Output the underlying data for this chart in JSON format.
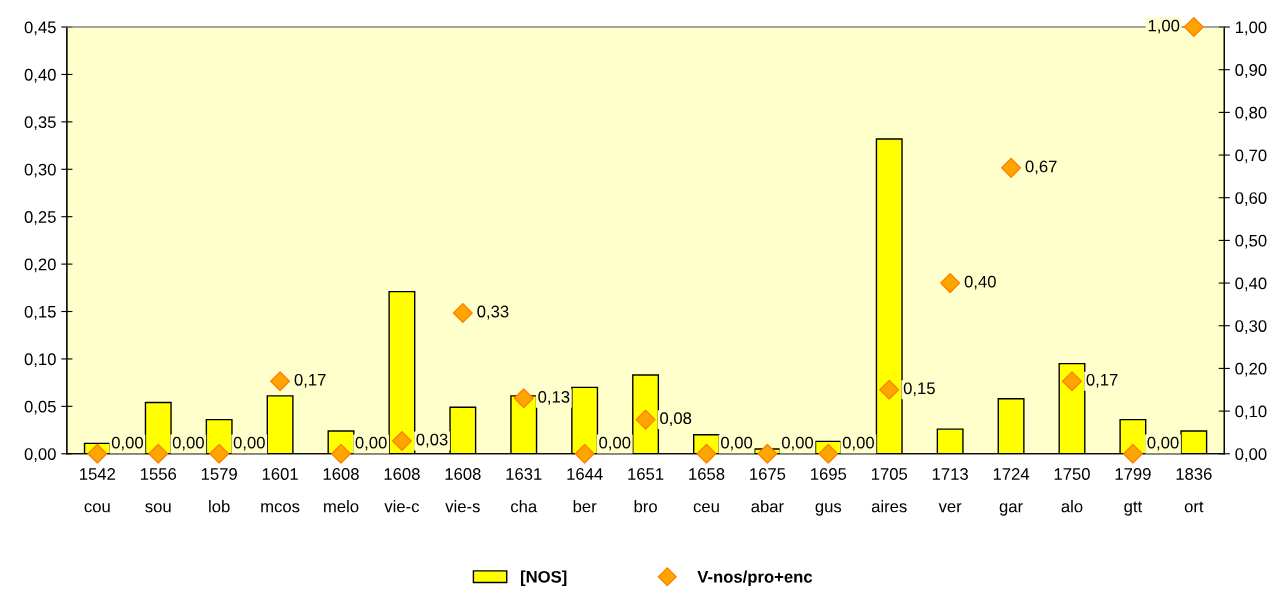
{
  "chart_data": {
    "type": "bar",
    "categories": [
      "1542\ncou",
      "1556\nsou",
      "1579\nlob",
      "1601\nmcos",
      "1608\nmelo",
      "1608\nvie-c",
      "1608\nvie-s",
      "1631\ncha",
      "1644\nber",
      "1651\nbro",
      "1658\nceu",
      "1675\nabar",
      "1695\ngus",
      "1705\naires",
      "1713\nver",
      "1724\ngar",
      "1750\nalo",
      "1799\ngtt",
      "1836\nort"
    ],
    "series": [
      {
        "name": "[NOS]",
        "color": "#ffff00",
        "values": [
          0.011,
          0.054,
          0.036,
          0.061,
          0.024,
          0.171,
          0.049,
          0.061,
          0.07,
          0.083,
          0.02,
          0.005,
          0.013,
          0.332,
          0.026,
          0.058,
          0.095,
          0.036,
          0.024
        ]
      },
      {
        "name": "V-nos/pro+enc",
        "type": "scatter",
        "axis": "y2",
        "color": "#ffa500",
        "marker": "diamond",
        "values": [
          0,
          0,
          0,
          0.17,
          0,
          0.03,
          0.33,
          0.13,
          0,
          0.08,
          0,
          0,
          0,
          0.15,
          0.4,
          0.67,
          0.17,
          0,
          1.0
        ],
        "value_labels": [
          "0,00",
          "0,00",
          "0,00",
          "0,17",
          "0,00",
          "0,03",
          "0,33",
          "0,13",
          "0,00",
          "0,08",
          "0,00",
          "0,00",
          "0,00",
          "0,15",
          "0,40",
          "0,67",
          "0,17",
          "0,00",
          "1,00"
        ]
      }
    ],
    "ylim": [
      0,
      0.45
    ],
    "yticks": [
      {
        "value": 0,
        "label": "0,00"
      },
      {
        "value": 0.05,
        "label": "0,05"
      },
      {
        "value": 0.1,
        "label": "0,10"
      },
      {
        "value": 0.15,
        "label": "0,15"
      },
      {
        "value": 0.2,
        "label": "0,20"
      },
      {
        "value": 0.25,
        "label": "0,25"
      },
      {
        "value": 0.3,
        "label": "0,30"
      },
      {
        "value": 0.35,
        "label": "0,35"
      },
      {
        "value": 0.4,
        "label": "0,40"
      },
      {
        "value": 0.45,
        "label": "0,45"
      }
    ],
    "y2lim": [
      0,
      1
    ],
    "y2ticks": [
      {
        "value": 0,
        "label": "0,00"
      },
      {
        "value": 0.1,
        "label": "0,10"
      },
      {
        "value": 0.2,
        "label": "0,20"
      },
      {
        "value": 0.3,
        "label": "0,30"
      },
      {
        "value": 0.4,
        "label": "0,40"
      },
      {
        "value": 0.5,
        "label": "0,50"
      },
      {
        "value": 0.6,
        "label": "0,60"
      },
      {
        "value": 0.7,
        "label": "0,70"
      },
      {
        "value": 0.8,
        "label": "0,80"
      },
      {
        "value": 0.9,
        "label": "0,90"
      },
      {
        "value": 1,
        "label": "1,00"
      }
    ],
    "grid": false,
    "legend": "bottom"
  }
}
